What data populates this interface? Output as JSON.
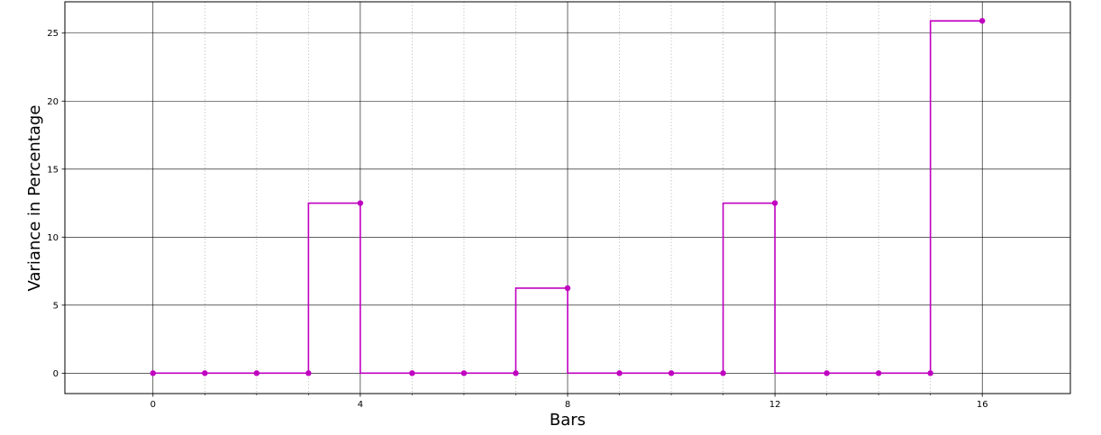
{
  "chart_data": {
    "type": "line",
    "step": "pre",
    "title": "",
    "xlabel": "Bars",
    "ylabel": "Variance in Percentage",
    "x": [
      0,
      1,
      2,
      3,
      4,
      5,
      6,
      7,
      8,
      9,
      10,
      11,
      12,
      13,
      14,
      15,
      16
    ],
    "series": [
      {
        "values": [
          0,
          0,
          0,
          0,
          12.5,
          0,
          0,
          0,
          6.25,
          0,
          0,
          0,
          12.5,
          0,
          0,
          0,
          25.9
        ],
        "color": "#bf00bf",
        "marker": "circle"
      }
    ],
    "xlim": [
      -1.7,
      17.7
    ],
    "ylim": [
      -1.5,
      27.3
    ],
    "x_major_ticks": [
      0,
      4,
      8,
      12,
      16
    ],
    "x_minor_ticks": [
      1,
      2,
      3,
      5,
      6,
      7,
      9,
      10,
      11,
      13,
      14,
      15
    ],
    "y_ticks": [
      0,
      5,
      10,
      15,
      20,
      25
    ],
    "x_tick_labels": [
      "0",
      "4",
      "8",
      "12",
      "16"
    ],
    "y_tick_labels": [
      "0",
      "5",
      "10",
      "15",
      "20",
      "25"
    ],
    "grid": {
      "major": true,
      "minor_x": true,
      "major_color": "#000000",
      "minor_color": "#b0b0b0"
    }
  }
}
